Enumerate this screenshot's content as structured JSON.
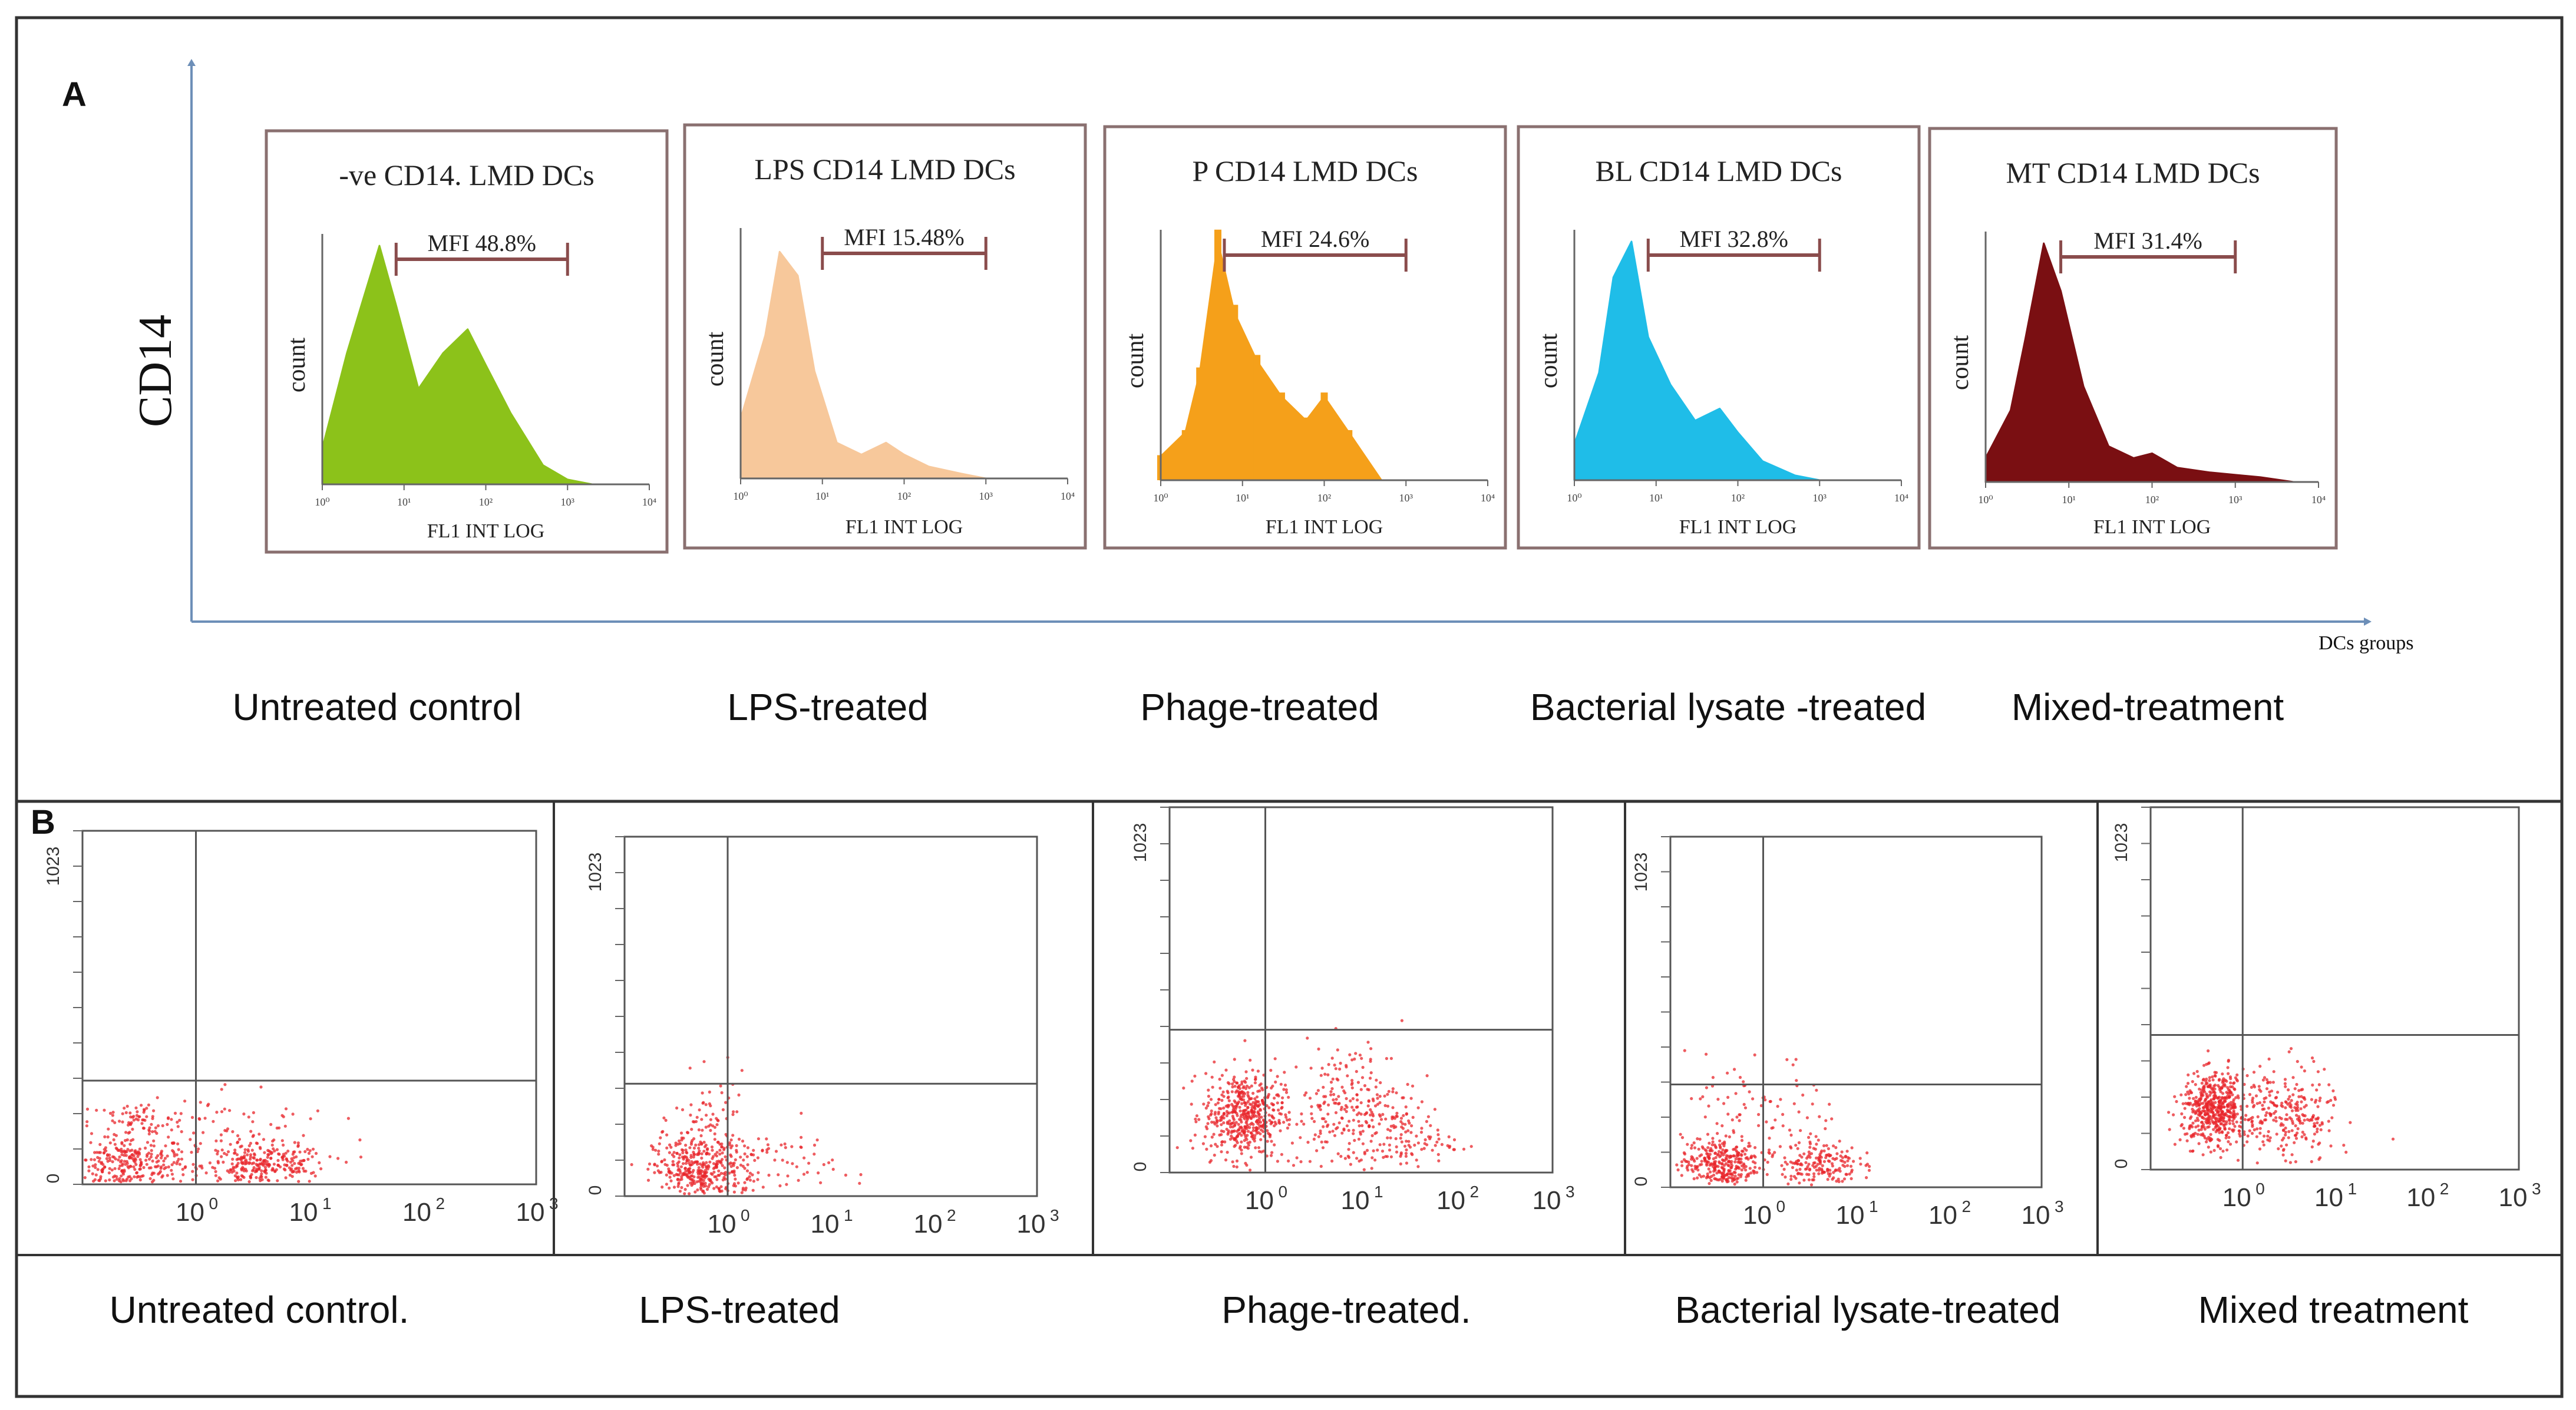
{
  "panel_a": {
    "letter": "A",
    "y_axis_label": "CD14",
    "x_axis_label": "DCs groups",
    "hist_ylabel": "count",
    "hist_xlabel": "FL1 INT LOG",
    "hist_ticks": [
      "10⁰",
      "10¹",
      "10²",
      "10³",
      "10⁴"
    ],
    "groups": [
      "Untreated control",
      "LPS-treated",
      "Phage-treated",
      "Bacterial lysate -treated",
      "Mixed-treatment"
    ]
  },
  "panel_b": {
    "letter": "B",
    "ytick_top": "1023",
    "ytick_bottom": "0",
    "xticks": [
      "10",
      "10",
      "10",
      "10"
    ],
    "xtick_exponents": [
      "0",
      "1",
      "2",
      "3"
    ],
    "groups": [
      "Untreated control.",
      "LPS-treated",
      "Phage-treated.",
      "Bacterial lysate-treated",
      "Mixed treatment"
    ]
  },
  "colors": {
    "untreated": "#8cc21a",
    "lps": "#f7c89b",
    "phage": "#f5a01a",
    "bacterial_lysate": "#1fbde8",
    "mixed": "#7a0f12",
    "marker_bar": "#8a4c4c",
    "dots": "#e8262b"
  },
  "chart_data": [
    {
      "type": "area",
      "title": "-ve CD14. LMD DCs",
      "xlabel": "FL1 INT LOG",
      "ylabel": "count",
      "scale": "log",
      "xlim": [
        1,
        10000
      ],
      "marker_label": "MFI 48.8%",
      "marker_range": [
        8,
        1000
      ],
      "series": [
        {
          "x": [
            1,
            2,
            3,
            5,
            8,
            15,
            30,
            60,
            100,
            200,
            500,
            1000,
            2000
          ],
          "values": [
            15,
            55,
            75,
            100,
            75,
            40,
            55,
            65,
            50,
            30,
            8,
            2,
            0
          ]
        }
      ]
    },
    {
      "type": "area",
      "title": "LPS CD14 LMD DCs",
      "xlabel": "FL1 INT LOG",
      "ylabel": "count",
      "scale": "log",
      "xlim": [
        1,
        10000
      ],
      "marker_label": "MFI 15.48%",
      "marker_range": [
        10,
        1000
      ],
      "series": [
        {
          "x": [
            1,
            2,
            3,
            5,
            8,
            15,
            30,
            60,
            100,
            200,
            500,
            1000
          ],
          "values": [
            25,
            60,
            95,
            85,
            45,
            15,
            10,
            15,
            10,
            5,
            2,
            0
          ]
        }
      ]
    },
    {
      "type": "area",
      "title": "P CD14 LMD DCs",
      "xlabel": "FL1 INT LOG",
      "ylabel": "count",
      "scale": "log",
      "xlim": [
        1,
        10000
      ],
      "marker_label": "MFI 24.6%",
      "marker_range": [
        6,
        1000
      ],
      "series": [
        {
          "x": [
            1,
            2,
            3,
            5,
            8,
            15,
            30,
            60,
            100,
            200,
            500
          ],
          "values": [
            10,
            20,
            45,
            100,
            70,
            50,
            35,
            25,
            35,
            20,
            0
          ]
        }
      ]
    },
    {
      "type": "area",
      "title": "BL CD14 LMD DCs",
      "xlabel": "FL1 INT LOG",
      "ylabel": "count",
      "scale": "log",
      "xlim": [
        1,
        10000
      ],
      "marker_label": "MFI 32.8%",
      "marker_range": [
        8,
        1000
      ],
      "series": [
        {
          "x": [
            1,
            2,
            3,
            5,
            8,
            15,
            30,
            60,
            100,
            200,
            500,
            1000
          ],
          "values": [
            15,
            45,
            85,
            100,
            60,
            40,
            25,
            30,
            20,
            8,
            2,
            0
          ]
        }
      ]
    },
    {
      "type": "area",
      "title": "MT CD14 LMD DCs",
      "xlabel": "FL1 INT LOG",
      "ylabel": "count",
      "scale": "log",
      "xlim": [
        1,
        10000
      ],
      "marker_label": "MFI 31.4%",
      "marker_range": [
        8,
        1000
      ],
      "series": [
        {
          "x": [
            1,
            2,
            3,
            5,
            8,
            15,
            30,
            60,
            100,
            200,
            500,
            1000,
            2000,
            5000
          ],
          "values": [
            10,
            30,
            60,
            100,
            80,
            40,
            15,
            10,
            12,
            6,
            4,
            3,
            2,
            0
          ]
        }
      ]
    },
    {
      "type": "scatter",
      "xlim": [
        0.1,
        1000
      ],
      "ylim": [
        0,
        1023
      ],
      "scale": "log-x",
      "gate_x": 1,
      "gate_y": 300,
      "clusters": [
        {
          "x": 0.25,
          "y": 60,
          "spread_x": 0.45,
          "spread_y": 40,
          "n": 300
        },
        {
          "x": 4,
          "y": 55,
          "spread_x": 0.45,
          "spread_y": 30,
          "n": 260
        },
        {
          "x": 0.3,
          "y": 180,
          "spread_x": 0.35,
          "spread_y": 30,
          "n": 70
        },
        {
          "x": 2,
          "y": 120,
          "spread_x": 0.8,
          "spread_y": 90,
          "n": 120
        }
      ]
    },
    {
      "type": "scatter",
      "xlim": [
        0.1,
        1000
      ],
      "ylim": [
        0,
        1023
      ],
      "scale": "log-x",
      "gate_x": 1,
      "gate_y": 320,
      "clusters": [
        {
          "x": 0.5,
          "y": 70,
          "spread_x": 0.35,
          "spread_y": 50,
          "n": 380
        },
        {
          "x": 2,
          "y": 80,
          "spread_x": 0.6,
          "spread_y": 60,
          "n": 110
        },
        {
          "x": 0.7,
          "y": 220,
          "spread_x": 0.3,
          "spread_y": 60,
          "n": 60
        }
      ]
    },
    {
      "type": "scatter",
      "xlim": [
        0.1,
        1000
      ],
      "ylim": [
        0,
        1023
      ],
      "scale": "log-x",
      "gate_x": 1,
      "gate_y": 400,
      "clusters": [
        {
          "x": 0.6,
          "y": 160,
          "spread_x": 0.35,
          "spread_y": 60,
          "n": 500
        },
        {
          "x": 8,
          "y": 180,
          "spread_x": 0.55,
          "spread_y": 90,
          "n": 260
        },
        {
          "x": 30,
          "y": 90,
          "spread_x": 0.4,
          "spread_y": 40,
          "n": 90
        }
      ]
    },
    {
      "type": "scatter",
      "xlim": [
        0.1,
        1000
      ],
      "ylim": [
        0,
        1023
      ],
      "scale": "log-x",
      "gate_x": 1,
      "gate_y": 300,
      "clusters": [
        {
          "x": 0.35,
          "y": 70,
          "spread_x": 0.35,
          "spread_y": 40,
          "n": 320
        },
        {
          "x": 4,
          "y": 70,
          "spread_x": 0.35,
          "spread_y": 35,
          "n": 180
        },
        {
          "x": 1,
          "y": 200,
          "spread_x": 0.7,
          "spread_y": 90,
          "n": 90
        }
      ]
    },
    {
      "type": "scatter",
      "xlim": [
        0.1,
        1000
      ],
      "ylim": [
        0,
        1023
      ],
      "scale": "log-x",
      "gate_x": 1,
      "gate_y": 380,
      "clusters": [
        {
          "x": 0.5,
          "y": 170,
          "spread_x": 0.3,
          "spread_y": 50,
          "n": 520
        },
        {
          "x": 3,
          "y": 150,
          "spread_x": 0.45,
          "spread_y": 70,
          "n": 260
        }
      ]
    }
  ]
}
